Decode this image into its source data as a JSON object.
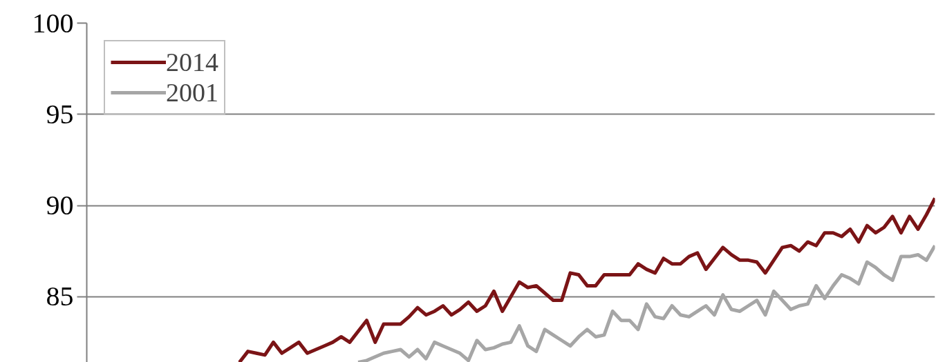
{
  "chart_data": {
    "type": "line",
    "categories": [
      null,
      null,
      null,
      null,
      null,
      null,
      null,
      null,
      null,
      null,
      null,
      null,
      null,
      null,
      null,
      null,
      null,
      null,
      null,
      null,
      null,
      null,
      null,
      null,
      null,
      null,
      null,
      null,
      null,
      null,
      null,
      null,
      null,
      null,
      null,
      null,
      null,
      null,
      null,
      null,
      null,
      null,
      null,
      null,
      null,
      null,
      null,
      null,
      null,
      null,
      null,
      null,
      null,
      null,
      null,
      null,
      null,
      null,
      null,
      null,
      null,
      null,
      null,
      null,
      null,
      null,
      null,
      null,
      null,
      null,
      null,
      null,
      null,
      null,
      null,
      null,
      null,
      null,
      null,
      null,
      null,
      null,
      null,
      null,
      null,
      null,
      null,
      null,
      null,
      null,
      null,
      null,
      null,
      null,
      null,
      null,
      null,
      null,
      null,
      null,
      null
    ],
    "ylim": [
      81.4,
      100
    ],
    "yticks": [
      85,
      90,
      95,
      100
    ],
    "tick_labels": "y",
    "grid": "y",
    "legend": "top left",
    "line_style": "solid",
    "marker": "none",
    "series": [
      {
        "name": "2014",
        "color": "#7b1416",
        "values": [
          null,
          null,
          null,
          null,
          null,
          null,
          null,
          null,
          null,
          null,
          null,
          null,
          null,
          null,
          null,
          null,
          null,
          null,
          81.4,
          82.0,
          81.9,
          81.8,
          82.5,
          81.9,
          82.2,
          82.5,
          81.9,
          82.1,
          82.3,
          82.5,
          82.8,
          82.5,
          83.1,
          83.7,
          82.5,
          83.5,
          83.5,
          83.5,
          83.9,
          84.4,
          84.0,
          84.2,
          84.5,
          84.0,
          84.3,
          84.7,
          84.2,
          84.5,
          85.3,
          84.2,
          85.0,
          85.8,
          85.5,
          85.6,
          85.2,
          84.8,
          84.8,
          86.3,
          86.2,
          85.6,
          85.6,
          86.2,
          86.2,
          86.2,
          86.2,
          86.8,
          86.5,
          86.3,
          87.1,
          86.8,
          86.8,
          87.2,
          87.4,
          86.5,
          87.1,
          87.7,
          87.3,
          87.0,
          87.0,
          86.9,
          86.3,
          87.0,
          87.7,
          87.8,
          87.5,
          88.0,
          87.8,
          88.5,
          88.5,
          88.3,
          88.7,
          88.0,
          88.9,
          88.5,
          88.8,
          89.4,
          88.5,
          89.4,
          88.7,
          89.5,
          90.4
        ]
      },
      {
        "name": "2001",
        "color": "#a6a6a6",
        "values": [
          null,
          null,
          null,
          null,
          null,
          null,
          null,
          null,
          null,
          null,
          null,
          null,
          null,
          null,
          null,
          null,
          null,
          null,
          null,
          null,
          null,
          null,
          null,
          null,
          null,
          null,
          null,
          null,
          null,
          null,
          null,
          null,
          81.4,
          81.5,
          81.7,
          81.9,
          82.0,
          82.1,
          81.7,
          82.1,
          81.6,
          82.5,
          82.3,
          82.1,
          81.9,
          81.5,
          82.6,
          82.1,
          82.2,
          82.4,
          82.5,
          83.4,
          82.3,
          82.0,
          83.2,
          82.9,
          82.6,
          82.3,
          82.8,
          83.2,
          82.8,
          82.9,
          84.2,
          83.7,
          83.7,
          83.2,
          84.6,
          83.9,
          83.8,
          84.5,
          84.0,
          83.9,
          84.2,
          84.5,
          84.0,
          85.1,
          84.3,
          84.2,
          84.5,
          84.8,
          84.0,
          85.3,
          84.8,
          84.3,
          84.5,
          84.6,
          85.6,
          84.9,
          85.6,
          86.2,
          86.0,
          85.7,
          86.9,
          86.6,
          86.2,
          85.9,
          87.2,
          87.2,
          87.3,
          87.0,
          87.8
        ]
      }
    ]
  }
}
